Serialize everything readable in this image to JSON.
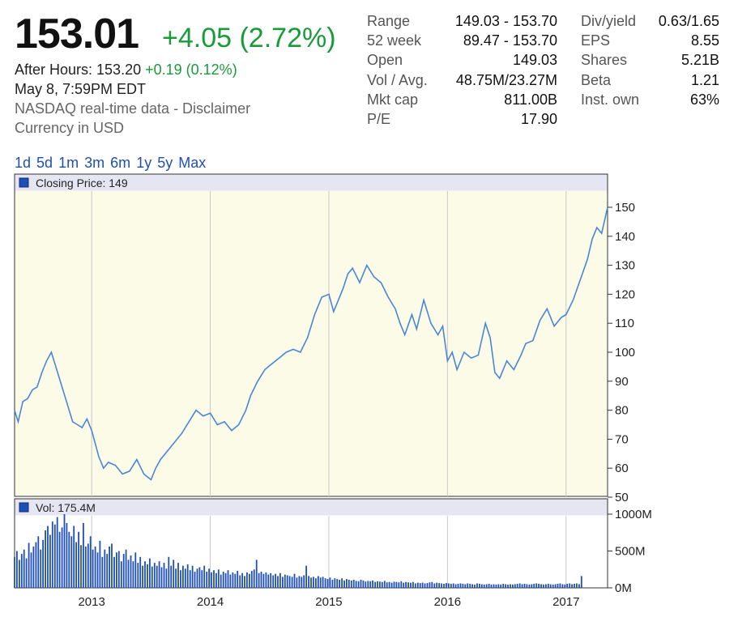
{
  "quote": {
    "price": "153.01",
    "change": "+4.05 (2.72%)",
    "after_hours_label": "After Hours: 153.20",
    "after_hours_change": "+0.19 (0.12%)",
    "timestamp": "May 8, 7:59PM EDT",
    "source": "NASDAQ real-time data - Disclaimer",
    "currency": "Currency in USD"
  },
  "stats_left": [
    {
      "label": "Range",
      "value": "149.03 - 153.70"
    },
    {
      "label": "52 week",
      "value": "89.47 - 153.70"
    },
    {
      "label": "Open",
      "value": "149.03"
    },
    {
      "label": "Vol / Avg.",
      "value": "48.75M/23.27M"
    },
    {
      "label": "Mkt cap",
      "value": "811.00B"
    },
    {
      "label": "P/E",
      "value": "17.90"
    }
  ],
  "stats_right": [
    {
      "label": "Div/yield",
      "value": "0.63/1.65"
    },
    {
      "label": "EPS",
      "value": "8.55"
    },
    {
      "label": "Shares",
      "value": "5.21B"
    },
    {
      "label": "Beta",
      "value": "1.21"
    },
    {
      "label": "Inst. own",
      "value": "63%"
    }
  ],
  "ranges": [
    "1d",
    "5d",
    "1m",
    "3m",
    "6m",
    "1y",
    "5y",
    "Max"
  ],
  "colors": {
    "line": "#4a86d6",
    "bar": "#1f4fb4",
    "plot_bg": "#fbfbe8",
    "legend_bg": "#e6e6f2",
    "up": "#1a9b3a",
    "link": "#1f4fb4"
  },
  "chart_data": [
    {
      "type": "line",
      "legend": "Closing Price: 149",
      "ylim": [
        50,
        150
      ],
      "yticks": [
        150,
        140,
        130,
        120,
        110,
        100,
        90,
        80,
        70,
        60,
        50
      ],
      "xlim": [
        2012.35,
        2017.35
      ],
      "xticks": [
        {
          "x": 2013,
          "label": "2013"
        },
        {
          "x": 2014,
          "label": "2014"
        },
        {
          "x": 2015,
          "label": "2015"
        },
        {
          "x": 2016,
          "label": "2016"
        },
        {
          "x": 2017,
          "label": "2017"
        }
      ],
      "grid": true,
      "x": [
        2012.35,
        2012.38,
        2012.42,
        2012.46,
        2012.5,
        2012.54,
        2012.58,
        2012.62,
        2012.66,
        2012.72,
        2012.78,
        2012.84,
        2012.88,
        2012.92,
        2012.96,
        2013.0,
        2013.04,
        2013.06,
        2013.1,
        2013.14,
        2013.2,
        2013.26,
        2013.32,
        2013.38,
        2013.44,
        2013.5,
        2013.54,
        2013.58,
        2013.64,
        2013.7,
        2013.76,
        2013.82,
        2013.88,
        2013.94,
        2014.0,
        2014.06,
        2014.12,
        2014.18,
        2014.24,
        2014.3,
        2014.34,
        2014.4,
        2014.46,
        2014.52,
        2014.58,
        2014.64,
        2014.7,
        2014.76,
        2014.82,
        2014.88,
        2014.94,
        2015.0,
        2015.04,
        2015.08,
        2015.12,
        2015.16,
        2015.2,
        2015.26,
        2015.32,
        2015.38,
        2015.44,
        2015.5,
        2015.56,
        2015.6,
        2015.64,
        2015.7,
        2015.74,
        2015.8,
        2015.86,
        2015.92,
        2015.96,
        2016.0,
        2016.04,
        2016.08,
        2016.14,
        2016.2,
        2016.26,
        2016.32,
        2016.36,
        2016.4,
        2016.44,
        2016.5,
        2016.56,
        2016.62,
        2016.66,
        2016.72,
        2016.78,
        2016.84,
        2016.9,
        2016.96,
        2017.0,
        2017.06,
        2017.12,
        2017.18,
        2017.22,
        2017.26,
        2017.3,
        2017.35
      ],
      "y": [
        80,
        76,
        83,
        84,
        87,
        88,
        93,
        97,
        100,
        92,
        84,
        76,
        75,
        74,
        77,
        73,
        67,
        64,
        60,
        62,
        61,
        58,
        59,
        63,
        58,
        56,
        60,
        63,
        66,
        69,
        72,
        76,
        80,
        78,
        79,
        75,
        76,
        73,
        75,
        80,
        85,
        90,
        94,
        96,
        98,
        100,
        101,
        100,
        105,
        113,
        119,
        120,
        114,
        118,
        122,
        127,
        129,
        124,
        130,
        126,
        124,
        119,
        115,
        110,
        106,
        113,
        108,
        118,
        110,
        106,
        109,
        97,
        100,
        94,
        100,
        98,
        99,
        110,
        105,
        93,
        91,
        97,
        94,
        99,
        103,
        104,
        111,
        115,
        109,
        112,
        113,
        118,
        125,
        132,
        139,
        143,
        141,
        150
      ]
    },
    {
      "type": "bar",
      "legend": "Vol: 175.4M",
      "ylim": [
        0,
        1100
      ],
      "yticks": [
        {
          "value": 1000,
          "label": "1000M"
        },
        {
          "value": 500,
          "label": "500M"
        },
        {
          "value": 0,
          "label": "0M"
        }
      ],
      "xlim": [
        2012.35,
        2017.35
      ],
      "x_start": 2012.35,
      "x_step": 0.02,
      "values": [
        420,
        500,
        380,
        460,
        520,
        400,
        610,
        480,
        560,
        620,
        700,
        520,
        650,
        780,
        840,
        720,
        900,
        860,
        960,
        760,
        820,
        1000,
        880,
        760,
        700,
        840,
        620,
        760,
        580,
        880,
        560,
        600,
        700,
        520,
        560,
        480,
        640,
        420,
        520,
        460,
        560,
        600,
        420,
        480,
        500,
        360,
        460,
        520,
        380,
        440,
        360,
        480,
        340,
        420,
        300,
        360,
        320,
        400,
        290,
        340,
        300,
        360,
        280,
        340,
        260,
        420,
        300,
        380,
        260,
        340,
        240,
        300,
        260,
        320,
        240,
        300,
        220,
        260,
        280,
        240,
        300,
        220,
        260,
        210,
        240,
        200,
        250,
        180,
        220,
        200,
        240,
        180,
        210,
        190,
        230,
        170,
        200,
        160,
        210,
        190,
        230,
        250,
        380,
        200,
        220,
        190,
        210,
        180,
        200,
        170,
        190,
        160,
        200,
        150,
        180,
        170,
        160,
        150,
        190,
        140,
        160,
        150,
        170,
        300,
        160,
        140,
        150,
        130,
        160,
        140,
        150,
        130,
        120,
        140,
        110,
        130,
        120,
        110,
        130,
        100,
        120,
        110,
        100,
        110,
        95,
        90,
        110,
        100,
        85,
        95,
        90,
        100,
        80,
        90,
        85,
        80,
        95,
        75,
        80,
        70,
        85,
        80,
        75,
        90,
        70,
        80,
        75,
        70,
        80,
        60,
        70,
        65,
        70,
        60,
        65,
        75,
        80,
        60,
        70,
        65,
        60,
        55,
        65,
        60,
        55,
        60,
        50,
        55,
        60,
        55,
        50,
        60,
        55,
        50,
        45,
        60,
        55,
        50,
        45,
        50,
        55,
        45,
        50,
        45,
        50,
        45,
        55,
        50,
        45,
        50,
        45,
        50,
        55,
        60,
        50,
        55,
        50,
        45,
        50,
        55,
        60,
        55,
        50,
        45,
        50,
        55,
        50,
        45,
        50,
        55,
        60,
        50,
        45,
        55,
        60,
        50,
        55,
        60,
        50,
        160
      ]
    }
  ]
}
